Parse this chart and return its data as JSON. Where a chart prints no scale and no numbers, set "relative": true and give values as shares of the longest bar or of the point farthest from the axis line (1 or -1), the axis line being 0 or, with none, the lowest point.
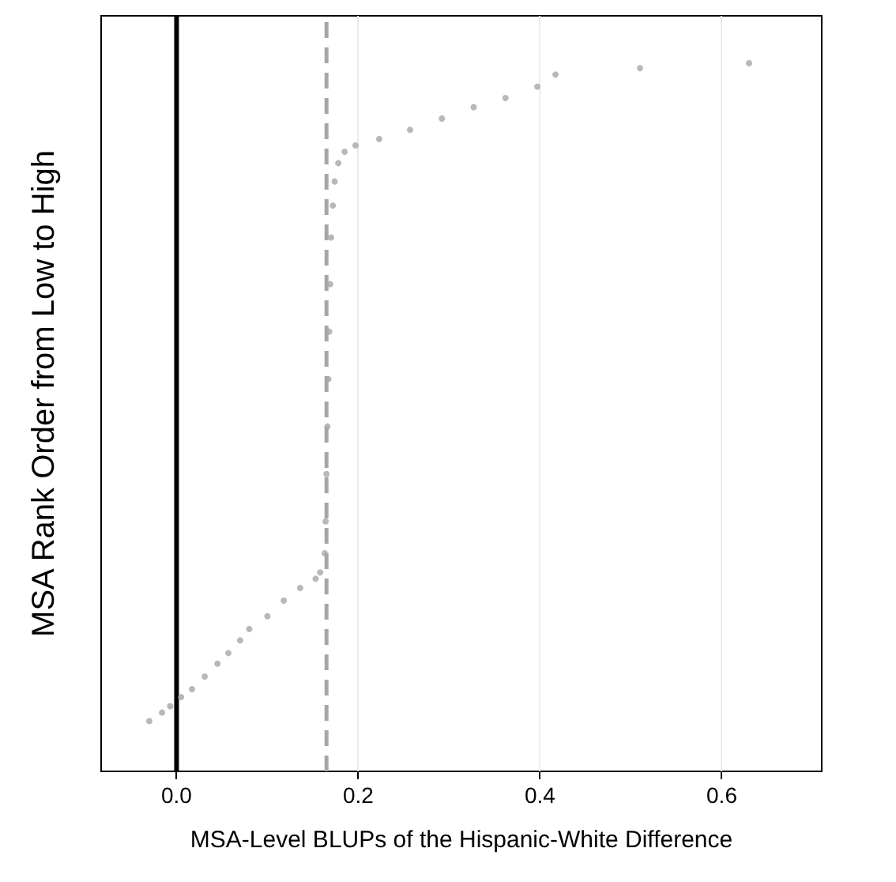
{
  "chart_data": {
    "type": "scatter",
    "xlabel": "MSA-Level BLUPs of the Hispanic-White Difference",
    "ylabel": "MSA Rank Order from Low to High",
    "relative": true,
    "xlim": [
      -0.083,
      0.71
    ],
    "xticks": [
      {
        "value": 0,
        "label": "0.0"
      },
      {
        "value": 0.2,
        "label": "0.2"
      },
      {
        "value": 0.4,
        "label": "0.4"
      },
      {
        "value": 0.6,
        "label": "0.6"
      }
    ],
    "series": [
      {
        "color": "#a6a6a6",
        "x": [
          -0.03,
          -0.016,
          -0.007,
          0.005,
          0.017,
          0.031,
          0.045,
          0.057,
          0.07,
          0.08,
          0.1,
          0.118,
          0.136,
          0.153,
          0.158,
          0.163,
          0.164,
          0.165,
          0.166,
          0.167,
          0.168,
          0.169,
          0.17,
          0.172,
          0.174,
          0.178,
          0.185,
          0.197,
          0.223,
          0.257,
          0.292,
          0.327,
          0.362,
          0.397,
          0.417,
          0.51,
          0.63
        ],
        "values": [
          0.071,
          0.083,
          0.092,
          0.105,
          0.116,
          0.134,
          0.152,
          0.167,
          0.185,
          0.201,
          0.219,
          0.241,
          0.259,
          0.272,
          0.281,
          0.308,
          0.353,
          0.42,
          0.487,
          0.554,
          0.621,
          0.688,
          0.754,
          0.799,
          0.833,
          0.859,
          0.875,
          0.884,
          0.893,
          0.906,
          0.922,
          0.938,
          0.951,
          0.967,
          0.984,
          0.993,
          1
        ]
      }
    ],
    "ref_lines": [
      {
        "axis": "x",
        "value": 0,
        "color": "#000000",
        "line_style": "solid"
      },
      {
        "axis": "x",
        "value": 0.165,
        "color": "#a6a6a6",
        "line_style": "dashed"
      }
    ],
    "grid": "x",
    "marker": "circle"
  }
}
